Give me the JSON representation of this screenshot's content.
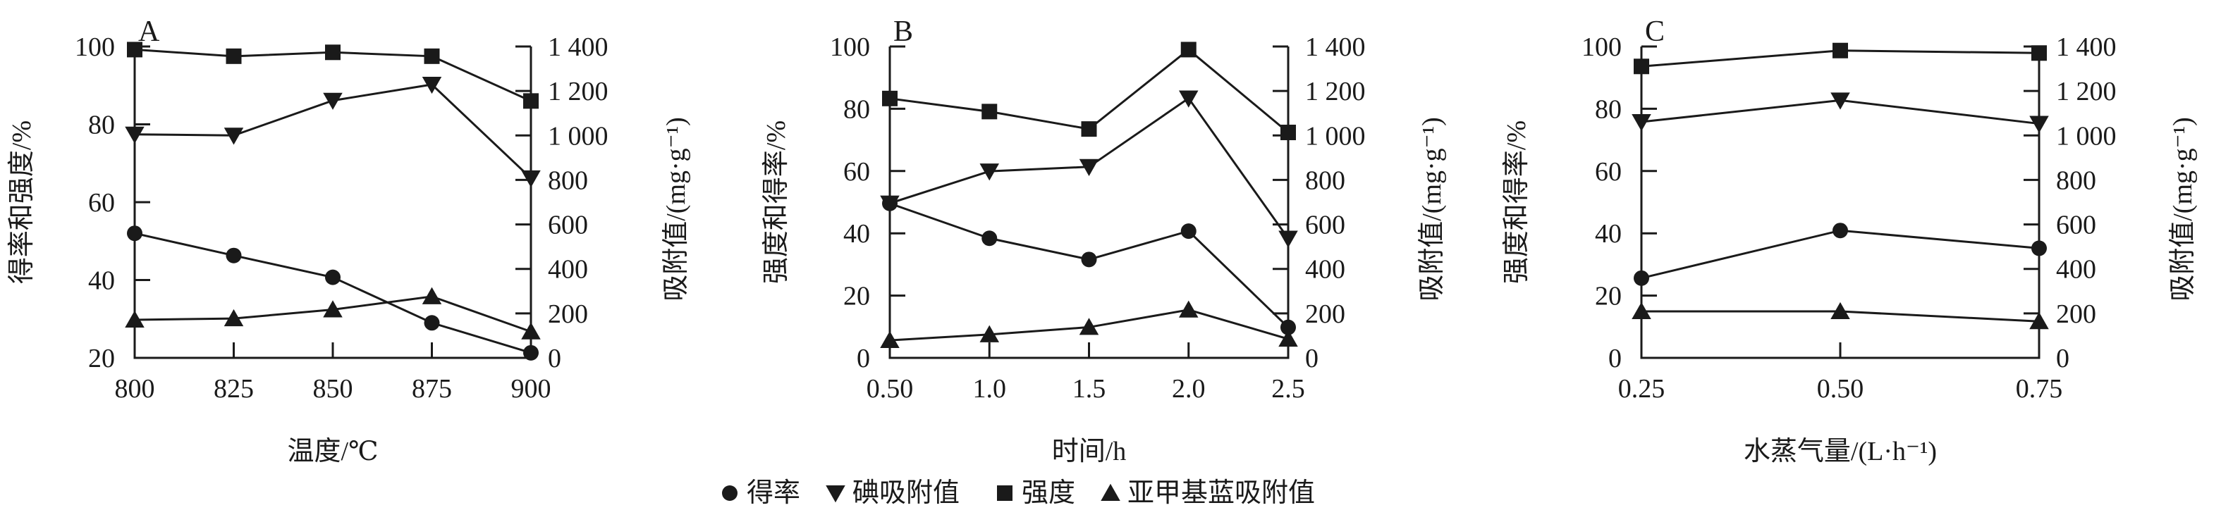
{
  "legend": [
    {
      "marker": "circle",
      "label": "得率"
    },
    {
      "marker": "triangle-down",
      "label": "碘吸附值"
    },
    {
      "marker": "square",
      "label": "强度"
    },
    {
      "marker": "triangle-up",
      "label": "亚甲基蓝吸附值"
    }
  ],
  "colors": {
    "line": "#1a1a1a",
    "background": "#ffffff"
  },
  "chart_data": [
    {
      "type": "line",
      "panel_label": "A",
      "xlabel": "温度/℃",
      "ylabel_left": "得率和强度/%",
      "ylabel_right": "吸附值/(mg·g⁻¹)",
      "categories": [
        "800",
        "825",
        "850",
        "875",
        "900"
      ],
      "ylim_left": [
        20,
        100
      ],
      "yticks_left": [
        "20",
        "40",
        "60",
        "80",
        "100"
      ],
      "ylim_right": [
        0,
        1400
      ],
      "yticks_right": [
        "0",
        "200",
        "400",
        "600",
        "800",
        "1 000",
        "1 200",
        "1 400"
      ],
      "series": [
        {
          "name": "得率",
          "axis": "left",
          "marker": "circle",
          "values": [
            52,
            46.3,
            40.7,
            29,
            21.3
          ]
        },
        {
          "name": "碘吸附值",
          "axis": "right",
          "marker": "triangle-down",
          "values": [
            1005,
            1000,
            1157,
            1229,
            808
          ]
        },
        {
          "name": "强度",
          "axis": "left",
          "marker": "square",
          "values": [
            99.2,
            97.5,
            98.5,
            97.5,
            86
          ]
        },
        {
          "name": "亚甲基蓝吸附值",
          "axis": "right",
          "marker": "triangle-up",
          "values": [
            171,
            177,
            217,
            276,
            118
          ]
        }
      ]
    },
    {
      "type": "line",
      "panel_label": "B",
      "xlabel": "时间/h",
      "ylabel_left": "强度和得率/%",
      "ylabel_right": "吸附值/(mg·g⁻¹)",
      "categories": [
        "0.50",
        "1.0",
        "1.5",
        "2.0",
        "2.5"
      ],
      "ylim_left": [
        0,
        100
      ],
      "yticks_left": [
        "0",
        "20",
        "40",
        "60",
        "80",
        "100"
      ],
      "ylim_right": [
        0,
        1400
      ],
      "yticks_right": [
        "0",
        "200",
        "400",
        "600",
        "800",
        "1 000",
        "1 200",
        "1 400"
      ],
      "series": [
        {
          "name": "得率",
          "axis": "left",
          "marker": "circle",
          "values": [
            49.6,
            38.4,
            31.6,
            40.7,
            9.8
          ]
        },
        {
          "name": "碘吸附值",
          "axis": "right",
          "marker": "triangle-down",
          "values": [
            695,
            839,
            859,
            1167,
            537
          ]
        },
        {
          "name": "强度",
          "axis": "left",
          "marker": "square",
          "values": [
            83.3,
            79.1,
            73.5,
            99,
            72.4
          ]
        },
        {
          "name": "亚甲基蓝吸附值",
          "axis": "right",
          "marker": "triangle-up",
          "values": [
            79,
            105,
            138,
            216,
            85
          ]
        }
      ]
    },
    {
      "type": "line",
      "panel_label": "C",
      "xlabel": "水蒸气量/(L·h⁻¹)",
      "ylabel_left": "强度和得率/%",
      "ylabel_right": "吸附值/(mg·g⁻¹)",
      "categories": [
        "0.25",
        "0.50",
        "0.75"
      ],
      "ylim_left": [
        0,
        100
      ],
      "yticks_left": [
        "0",
        "20",
        "40",
        "60",
        "80",
        "100"
      ],
      "ylim_right": [
        0,
        1400
      ],
      "yticks_right": [
        "0",
        "200",
        "400",
        "600",
        "800",
        "1 000",
        "1 200",
        "1 400"
      ],
      "series": [
        {
          "name": "得率",
          "axis": "left",
          "marker": "circle",
          "values": [
            25.6,
            40.9,
            35.2
          ]
        },
        {
          "name": "碘吸附值",
          "axis": "right",
          "marker": "triangle-down",
          "values": [
            1061,
            1158,
            1053
          ]
        },
        {
          "name": "强度",
          "axis": "left",
          "marker": "square",
          "values": [
            93.6,
            98.7,
            97.9
          ]
        },
        {
          "name": "亚甲基蓝吸附值",
          "axis": "right",
          "marker": "triangle-up",
          "values": [
            209,
            209,
            164
          ]
        }
      ]
    }
  ]
}
